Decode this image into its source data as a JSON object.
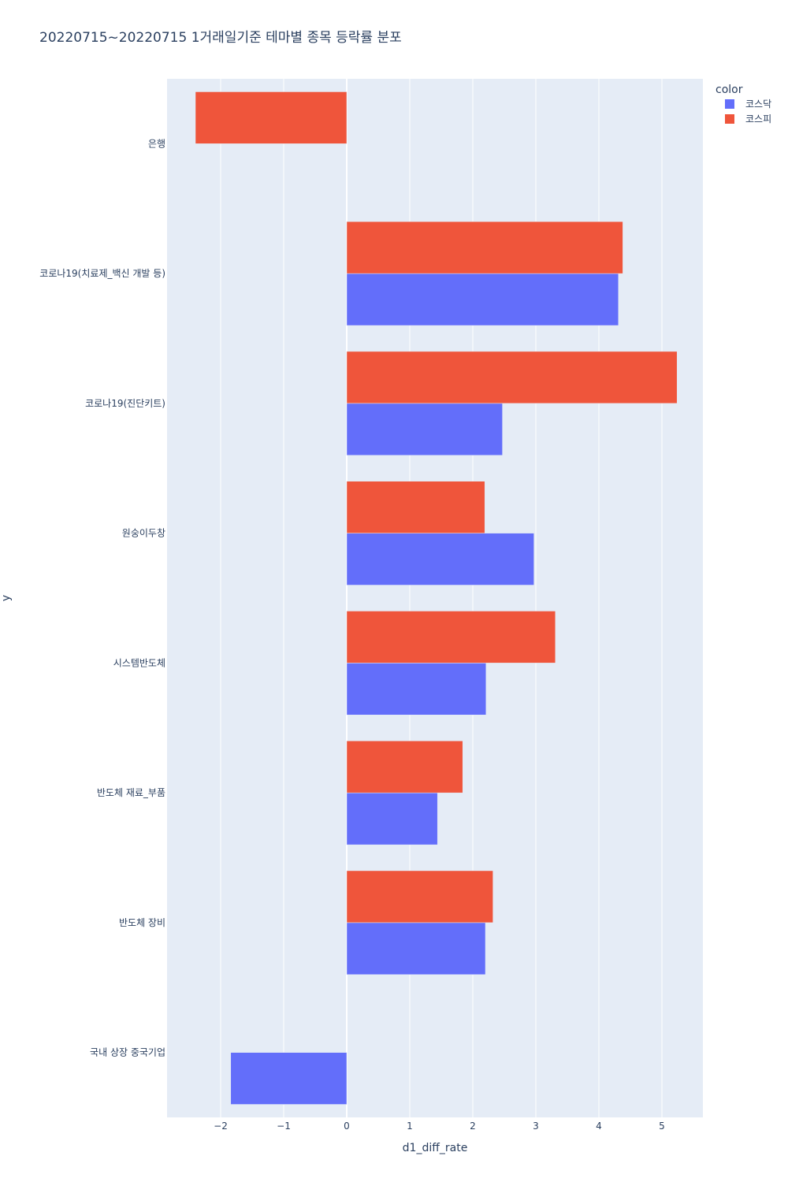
{
  "chart_data": {
    "type": "bar",
    "orientation": "horizontal",
    "barmode": "group",
    "title": "20220715~20220715 1거래일기준 테마별 종목 등락률 분포",
    "xlabel": "d1_diff_rate",
    "ylabel": "y",
    "xlim": [
      -2.85,
      5.65
    ],
    "xticks": [
      -2,
      -1,
      0,
      1,
      2,
      3,
      4,
      5
    ],
    "xtick_labels": [
      "−2",
      "−1",
      "0",
      "1",
      "2",
      "3",
      "4",
      "5"
    ],
    "categories": [
      "은행",
      "코로나19(치료제_백신 개발 등)",
      "코로나19(진단키트)",
      "원숭이두창",
      "시스템반도체",
      "반도체 재료_부품",
      "반도체 장비",
      "국내 상장 중국기업"
    ],
    "grid": true,
    "legend": {
      "title": "color",
      "position": "top-right"
    },
    "series": [
      {
        "name": "코스닥",
        "color": "#636efa",
        "values": [
          null,
          4.31,
          2.47,
          2.97,
          2.21,
          1.44,
          2.2,
          -1.84
        ]
      },
      {
        "name": "코스피",
        "color": "#ef553b",
        "values": [
          -2.4,
          4.38,
          5.24,
          2.19,
          3.31,
          1.84,
          2.32,
          null
        ]
      }
    ]
  }
}
